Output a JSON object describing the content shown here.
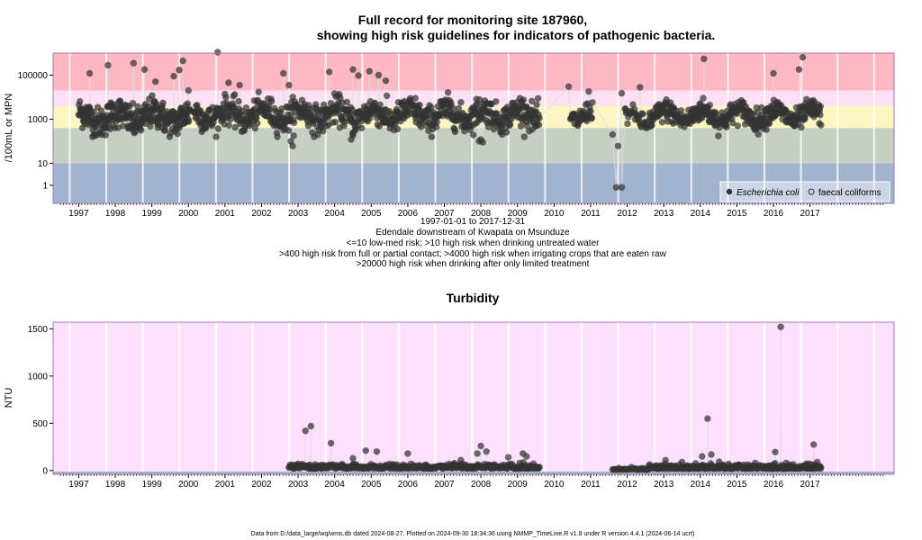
{
  "chart_data": [
    {
      "type": "scatter",
      "title_line1": "Full record for monitoring site 187960,",
      "title_line2": "showing high risk guidelines for indicators of pathogenic bacteria.",
      "ylabel": "/100mL or MPN",
      "y_scale": "log10",
      "ylim": [
        0.15,
        1000000
      ],
      "y_ticks": [
        {
          "value": 1,
          "label": "1"
        },
        {
          "value": 10,
          "label": "10"
        },
        {
          "value": 1000,
          "label": "1000"
        },
        {
          "value": 100000,
          "label": "100000"
        }
      ],
      "xlim": [
        1996.3,
        2019.3
      ],
      "x_ticks": [
        "1997",
        "1998",
        "1999",
        "2000",
        "2001",
        "2002",
        "2003",
        "2004",
        "2005",
        "2006",
        "2007",
        "2008",
        "2009",
        "2010",
        "2011",
        "2012",
        "2013",
        "2014",
        "2015",
        "2016",
        "2017"
      ],
      "risk_bands": [
        {
          "from": 0.15,
          "to": 10,
          "color": "#a1b3cf"
        },
        {
          "from": 10,
          "to": 400,
          "color": "#c5cfc2"
        },
        {
          "from": 400,
          "to": 4000,
          "color": "#fdf6c3"
        },
        {
          "from": 4000,
          "to": 20000,
          "color": "#fee0f5"
        },
        {
          "from": 20000,
          "to": 1000000,
          "color": "#feb8c4"
        }
      ],
      "captions": [
        "1997-01-01 to 2017-12-31",
        "Edendale downstream of Kwapata on Msunduze",
        "<=10 low-med risk; >10 high risk when drinking untreated water",
        ">400 high risk from full or partial contact; >4000 high risk when irrigating crops that are eaten raw",
        ">20000 high risk when drinking after only limited treatment"
      ],
      "legend": [
        {
          "label": "Escherichia coli",
          "marker": "filled-circle",
          "italic": true
        },
        {
          "label": "faecal coliforms",
          "marker": "open-circle",
          "italic": false
        }
      ],
      "legend_position": "bottom-right",
      "series": [
        {
          "name": "Escherichia coli",
          "color": "#333333",
          "segments": [
            {
              "start": 1997.0,
              "end": 2000.05,
              "median": 1200,
              "spread": 1.05,
              "count": 300
            },
            {
              "start": 2000.15,
              "end": 2009.6,
              "median": 1600,
              "spread": 0.95,
              "count": 780
            },
            {
              "start": 2010.45,
              "end": 2011.05,
              "median": 1500,
              "spread": 0.7,
              "count": 40
            },
            {
              "start": 2011.95,
              "end": 2012.55,
              "median": 1000,
              "spread": 0.6,
              "count": 30
            },
            {
              "start": 2012.6,
              "end": 2017.3,
              "median": 1500,
              "spread": 0.75,
              "count": 420
            }
          ],
          "extra_points": [
            [
              1997.3,
              120000
            ],
            [
              1997.8,
              280000
            ],
            [
              1998.5,
              350000
            ],
            [
              1998.8,
              180000
            ],
            [
              1999.1,
              50000
            ],
            [
              1999.6,
              90000
            ],
            [
              1999.75,
              170000
            ],
            [
              1999.85,
              450000
            ],
            [
              2000.0,
              20000
            ],
            [
              2000.8,
              1100000
            ],
            [
              2001.1,
              45000
            ],
            [
              2001.4,
              35000
            ],
            [
              2002.6,
              120000
            ],
            [
              2002.75,
              35000
            ],
            [
              2003.85,
              140000
            ],
            [
              2004.5,
              180000
            ],
            [
              2004.65,
              95000
            ],
            [
              2004.95,
              150000
            ],
            [
              2005.2,
              100000
            ],
            [
              2005.4,
              55000
            ],
            [
              2002.8,
              100
            ],
            [
              2002.85,
              60
            ],
            [
              2004.45,
              120
            ],
            [
              2004.5,
              180
            ],
            [
              2007.95,
              100
            ],
            [
              2008.0,
              120
            ],
            [
              2008.05,
              90
            ],
            [
              2010.4,
              30000
            ],
            [
              2010.95,
              18000
            ],
            [
              2011.85,
              15000
            ],
            [
              2012.35,
              28000
            ],
            [
              2011.6,
              200
            ],
            [
              2011.7,
              0.8
            ],
            [
              2011.85,
              0.8
            ],
            [
              2011.75,
              60
            ],
            [
              2011.95,
              3000
            ],
            [
              2014.1,
              550000
            ],
            [
              2016.0,
              120000
            ],
            [
              2016.8,
              650000
            ],
            [
              2016.7,
              180000
            ]
          ]
        }
      ]
    },
    {
      "type": "scatter",
      "title": "Turbidity",
      "ylabel": "NTU",
      "ylim": [
        -40,
        1570
      ],
      "y_ticks": [
        0,
        500,
        1000,
        1500
      ],
      "xlim": [
        1996.3,
        2019.3
      ],
      "x_ticks": [
        "1997",
        "1998",
        "1999",
        "2000",
        "2001",
        "2002",
        "2003",
        "2004",
        "2005",
        "2006",
        "2007",
        "2008",
        "2009",
        "2010",
        "2011",
        "2012",
        "2013",
        "2014",
        "2015",
        "2016",
        "2017"
      ],
      "background_color": "#fee0fe",
      "baseline_band_color": "#a1b3bf",
      "series": [
        {
          "name": "Turbidity",
          "color": "#333333",
          "segments": [
            {
              "start": 2002.75,
              "end": 2009.6,
              "base": 20,
              "count": 420
            },
            {
              "start": 2011.6,
              "end": 2012.6,
              "base": 8,
              "count": 30
            },
            {
              "start": 2012.6,
              "end": 2017.3,
              "base": 18,
              "count": 330
            }
          ],
          "extra_points": [
            [
              2003.2,
              420
            ],
            [
              2003.35,
              470
            ],
            [
              2003.0,
              70
            ],
            [
              2003.9,
              290
            ],
            [
              2004.85,
              210
            ],
            [
              2005.15,
              200
            ],
            [
              2004.5,
              130
            ],
            [
              2006.0,
              180
            ],
            [
              2006.5,
              60
            ],
            [
              2007.45,
              110
            ],
            [
              2007.9,
              180
            ],
            [
              2008.0,
              260
            ],
            [
              2008.15,
              200
            ],
            [
              2008.75,
              140
            ],
            [
              2009.15,
              180
            ],
            [
              2009.25,
              150
            ],
            [
              2013.05,
              110
            ],
            [
              2013.5,
              90
            ],
            [
              2014.05,
              150
            ],
            [
              2014.2,
              550
            ],
            [
              2014.3,
              170
            ],
            [
              2015.5,
              80
            ],
            [
              2016.05,
              195
            ],
            [
              2016.2,
              1520
            ],
            [
              2016.35,
              80
            ],
            [
              2016.9,
              70
            ],
            [
              2017.1,
              275
            ],
            [
              2017.2,
              90
            ]
          ]
        }
      ]
    }
  ],
  "footer": "Data from D:/data_large/wq/wms.db dated 2024-08-27. Plotted on 2024-09-30 18:34:36 using NMMP_TimeLine.R v1.8 under R version 4.4.1 (2024-06-14 ucrt)"
}
